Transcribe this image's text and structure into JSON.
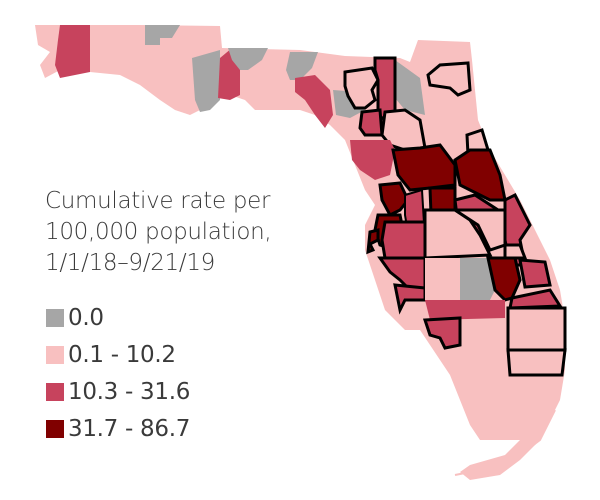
{
  "legend": {
    "title": "Cumulative rate per\n100,000 population,\n1/1/18–9/21/19",
    "items": [
      {
        "label": "0.0",
        "color": "#a6a6a6"
      },
      {
        "label": "0.1 - 10.2",
        "color": "#f8c0c0"
      },
      {
        "label": "10.3 - 31.6",
        "color": "#c7435d"
      },
      {
        "label": "31.7 - 86.7",
        "color": "#800000"
      }
    ]
  },
  "colors": {
    "zero": "#a6a6a6",
    "low": "#f8c0c0",
    "mid": "#c7435d",
    "high": "#800000",
    "outline": "#000000"
  }
}
